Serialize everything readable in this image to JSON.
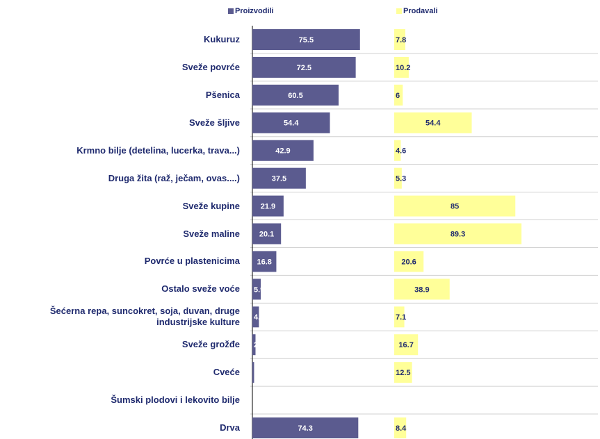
{
  "chart_data": {
    "type": "bar",
    "categories": [
      "Kukuruz",
      "Sveže povrće",
      "Pšenica",
      "Sveže šljive",
      "Krmno bilje (detelina, lucerka, trava...)",
      "Druga žita (raž, ječam, ovas....)",
      "Sveže kupine",
      "Sveže maline",
      "Povrće u plastenicima",
      "Ostalo sveže voće",
      "Šećerna repa, suncokret, soja, duvan, druge industrijske kulture",
      "Sveže grožđe",
      "Cveće",
      "Šumski plodovi i lekovito bilje",
      "Drva"
    ],
    "series": [
      {
        "name": "Proizvodili",
        "color": "#5b5b8f",
        "values": [
          75.5,
          72.5,
          60.5,
          54.4,
          42.9,
          37.5,
          21.9,
          20.1,
          16.8,
          5.9,
          4.6,
          2.2,
          1.2,
          null,
          74.3
        ]
      },
      {
        "name": "Prodavali",
        "color": "#ffff99",
        "values": [
          7.8,
          10.2,
          6,
          54.4,
          4.6,
          5.3,
          85,
          89.3,
          20.6,
          38.9,
          7.1,
          16.7,
          12.5,
          null,
          8.4
        ]
      }
    ],
    "xlim": [
      0,
      100
    ]
  }
}
